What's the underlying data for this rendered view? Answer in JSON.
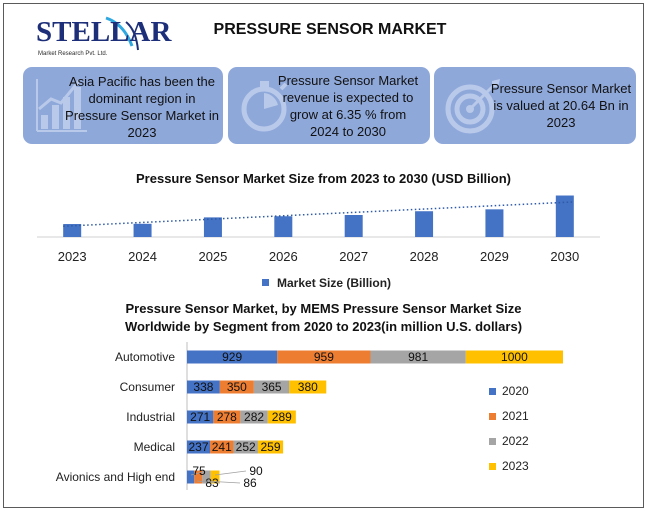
{
  "logo": {
    "brand": "STELLAR",
    "tagline": "Market Research Pvt. Ltd."
  },
  "title": "PRESSURE SENSOR MARKET",
  "cards": [
    {
      "icon": "bar-chart-icon",
      "text_lines": [
        "Asia Pacific has been the",
        "dominant region in",
        "Pressure Sensor Market in",
        "2023"
      ]
    },
    {
      "icon": "stopwatch-icon",
      "text_lines": [
        "Pressure Sensor Market",
        "revenue is expected to",
        "grow at 6.35 % from",
        "2024 to 2030"
      ]
    },
    {
      "icon": "target-icon",
      "text_lines": [
        "Pressure Sensor Market",
        "is valued at 20.64 Bn in",
        "2023"
      ]
    }
  ],
  "colors": {
    "card_bg": "#8fa8da",
    "bar_blue": "#4472c4",
    "orange": "#ed7d31",
    "gray": "#a5a5a5",
    "yellow": "#ffc000",
    "trend": "#2e5aa8"
  },
  "chart_data": [
    {
      "type": "bar",
      "title": "Pressure Sensor Market Size from 2023 to 2030 (USD Billion)",
      "categories": [
        "2023",
        "2024",
        "2025",
        "2026",
        "2027",
        "2028",
        "2029",
        "2030"
      ],
      "series": [
        {
          "name": "Market Size (Billion)",
          "values": [
            20.64,
            21.0,
            31.2,
            33.0,
            35.0,
            41.0,
            44.0,
            66.0
          ]
        }
      ],
      "trendline": "linear, dotted",
      "legend": "bottom",
      "ylim": [
        0,
        70
      ],
      "grid": false
    },
    {
      "type": "bar",
      "orientation": "horizontal-stacked",
      "title_lines": [
        "Pressure Sensor Market, by MEMS Pressure Sensor Market Size",
        "Worldwide by Segment from 2020 to 2023(in million U.S. dollars)"
      ],
      "categories": [
        "Automotive",
        "Consumer",
        "Industrial",
        "Medical",
        "Avionics and High end"
      ],
      "series": [
        {
          "name": "2020",
          "values": [
            929,
            338,
            271,
            237,
            75
          ]
        },
        {
          "name": "2021",
          "values": [
            959,
            350,
            278,
            241,
            83
          ]
        },
        {
          "name": "2022",
          "values": [
            981,
            365,
            282,
            252,
            86
          ]
        },
        {
          "name": "2023",
          "values": [
            1000,
            380,
            289,
            259,
            90
          ]
        }
      ],
      "legend": "right",
      "grid": false
    }
  ]
}
